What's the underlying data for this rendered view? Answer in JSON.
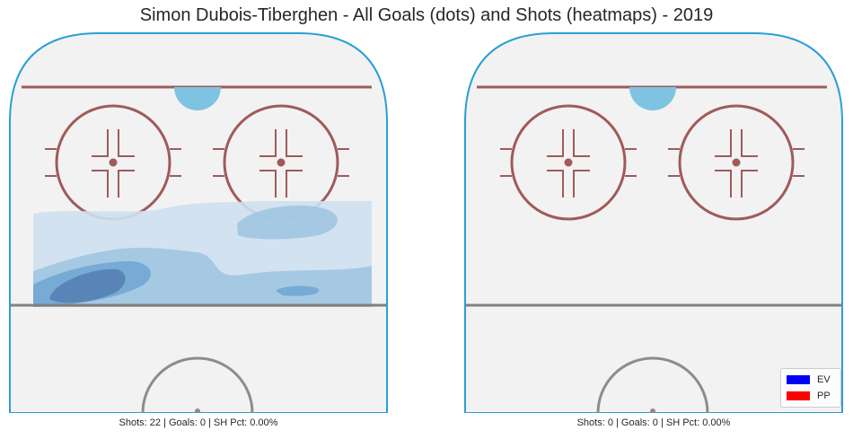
{
  "title": "Simon Dubois-Tiberghen - All Goals (dots) and Shots (heatmaps) - 2019",
  "colors": {
    "board": "#2a9fd6",
    "ice": "#f2f2f2",
    "goal_line": "#a05a5a",
    "circle": "#a05a5a",
    "crease": "#7ec3e2",
    "blue_line": "#808080",
    "center_circle": "#8c8c8c",
    "heatmap_levels": [
      "#cfe0ef",
      "#9ec4e0",
      "#6fa5d1",
      "#5580b4"
    ]
  },
  "chart_data": [
    {
      "type": "heatmap",
      "panel": "left",
      "goals": [],
      "caption": "Shots: 22 | Goals: 0 | SH Pct: 0.00%",
      "stats": {
        "shots": 22,
        "goals": 0,
        "sh_pct": "0.00%"
      }
    },
    {
      "type": "heatmap",
      "panel": "right",
      "goals": [],
      "caption": "Shots: 0 | Goals: 0 | SH Pct: 0.00%",
      "stats": {
        "shots": 0,
        "goals": 0,
        "sh_pct": "0.00%"
      }
    }
  ],
  "legend": {
    "placement": "bottom-right",
    "items": [
      {
        "label": "EV",
        "color": "#0000ff"
      },
      {
        "label": "PP",
        "color": "#ff0000"
      }
    ]
  }
}
